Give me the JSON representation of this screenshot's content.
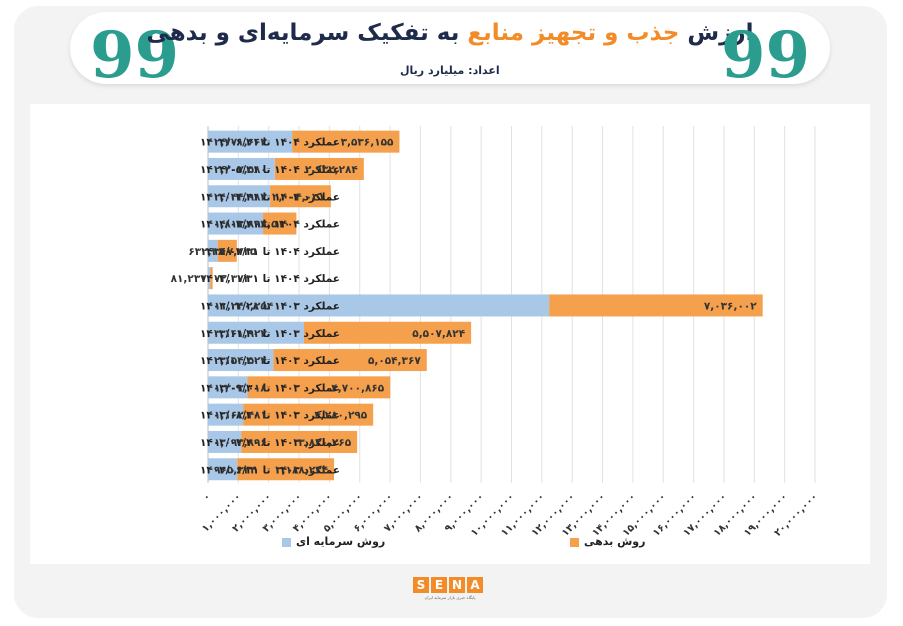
{
  "header": {
    "title_part1": "ارزش",
    "title_highlight": "جذب و تجهیز منابع",
    "title_part2": "به تفکیک سرمایه‌ای و بدهی",
    "subtitle": "اعداد: میلیارد ریال",
    "quote_mark": "99"
  },
  "logo": {
    "text": "SENA",
    "letters": [
      "S",
      "E",
      "N",
      "A"
    ],
    "tagline": "پایگاه خبری بازار سرمایه ایران"
  },
  "legend": {
    "equity_label": "روش سرمایه ای",
    "debt_label": "روش بدهی"
  },
  "colors": {
    "equity": "#a9c8e8",
    "debt": "#f5a04c",
    "title": "#1f2b4a",
    "accent": "#f28c28",
    "quote": "#2a9d8f"
  },
  "chart_data": {
    "type": "bar",
    "orientation": "horizontal",
    "stacked": true,
    "title": "ارزش جذب و تجهیز منابع به تفکیک سرمایه‌ای و بدهی",
    "subtitle": "اعداد: میلیارد ریال",
    "categories": [
      "عملکرد ۱۴۰۴ تا ۱۴۰۴/۰۶/۳۱",
      "عملکرد ۱۴۰۴ تا ۱۴۰۴/۰۵/۳۱",
      "عملکرد ۱۴۰۴ تا ۱۴۰۴/۰۴/۳۱",
      "عملکرد ۱۴۰۴ تا ۱۴۰۴/۰۳/۳۱",
      "عملکرد ۱۴۰۴ تا ۱۴۰۴/۰۲/۳۱",
      "عملکرد ۱۴۰۴ تا ۱۴۰۴/۰۱/۳۱",
      "عملکرد ۱۴۰۳ تا ۱۴۰۳/۱۲/۲۸",
      "عملکرد ۱۴۰۳ تا ۱۴۰۳/۱۱/۳۰",
      "عملکرد ۱۴۰۳ تا ۱۴۰۳/۱۰/۳۰",
      "عملکرد ۱۴۰۳ تا ۱۴۰۳/۰۹/۳۰",
      "عملکرد ۱۴۰۳ تا ۱۴۰۳/۰۸/۳۰",
      "عملکرد ۱۴۰۳ تا ۱۴۰۳/۰۷/۳۰",
      "عملکرد ۱۴۰۳ تا ۱۴۰۳/۰۶/۳۱"
    ],
    "series": [
      {
        "name": "روش سرمایه ای",
        "values": [
          2771663,
          2202580,
          2044983,
          1813893,
          317725,
          72373,
          11240254,
          3161923,
          2154524,
          1303018,
          1162481,
          1093896,
          965324
        ],
        "labels": [
          "۲,۷۷۱,۶۶۳",
          "۲,۲۰۲,۵۸۰",
          "۲,۰۴۴,۹۸۳",
          "۱,۸۱۳,۸۹۳",
          "۳۱۷,۷۲۵",
          "۷۲,۳۷۳",
          "۱۱,۲۴۰,۲۵۴",
          "۳,۱۶۱,۹۲۳",
          "۲,۱۵۴,۵۲۴",
          "۱,۳۰۳,۰۱۸",
          "۱,۱۶۲,۴۸۱",
          "۱,۰۹۳,۸۹۶",
          "۹۶۵,۳۲۴"
        ]
      },
      {
        "name": "روش بدهی",
        "values": [
          3536155,
          2932284,
          2004031,
          1098510,
          632380,
          81237,
          7036002,
          5507824,
          5054367,
          4700865,
          4280295,
          3820265,
          3188224
        ],
        "labels": [
          "۳,۵۳۶,۱۵۵",
          "۲,۹۳۲,۲۸۴",
          "۲,۰۰۴,۰۳۱",
          "۱,۰۹۸,۵۱۰",
          "۶۳۲,۳۸۰",
          "۸۱,۲۳۷",
          "۷,۰۳۶,۰۰۲",
          "۵,۵۰۷,۸۲۴",
          "۵,۰۵۴,۳۶۷",
          "۴,۷۰۰,۸۶۵",
          "۴,۲۸۰,۲۹۵",
          "۳,۸۲۰,۲۶۵",
          "۳,۱۸۸,۲۲۴"
        ]
      }
    ],
    "xlim": [
      0,
      20000000
    ],
    "xticks": [
      "۰",
      "۱,۰۰۰,۰۰۰",
      "۲,۰۰۰,۰۰۰",
      "۳,۰۰۰,۰۰۰",
      "۴,۰۰۰,۰۰۰",
      "۵,۰۰۰,۰۰۰",
      "۶,۰۰۰,۰۰۰",
      "۷,۰۰۰,۰۰۰",
      "۸,۰۰۰,۰۰۰",
      "۹,۰۰۰,۰۰۰",
      "۱۰,۰۰۰,۰۰۰",
      "۱۱,۰۰۰,۰۰۰",
      "۱۲,۰۰۰,۰۰۰",
      "۱۳,۰۰۰,۰۰۰",
      "۱۴,۰۰۰,۰۰۰",
      "۱۵,۰۰۰,۰۰۰",
      "۱۶,۰۰۰,۰۰۰",
      "۱۷,۰۰۰,۰۰۰",
      "۱۸,۰۰۰,۰۰۰",
      "۱۹,۰۰۰,۰۰۰",
      "۲۰,۰۰۰,۰۰۰"
    ],
    "grid": true,
    "legend_position": "bottom"
  }
}
